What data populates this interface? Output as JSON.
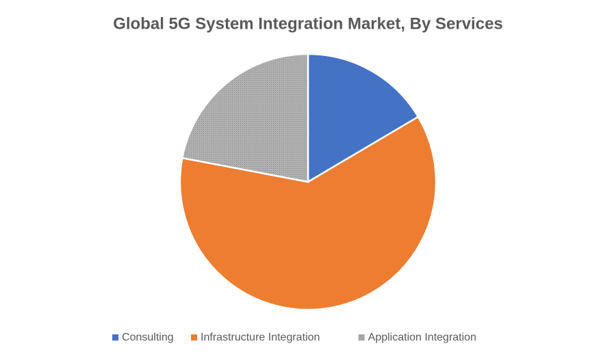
{
  "chart_data": {
    "type": "pie",
    "title": "Global 5G System Integration Market, By Services",
    "categories": [
      "Consulting",
      "Infrastructure Integration",
      "Application Integration"
    ],
    "values": [
      16.5,
      61.5,
      22
    ],
    "colors": [
      "#4472c4",
      "#ed7d31",
      "#a5a5a5"
    ],
    "legend": "bottom"
  }
}
